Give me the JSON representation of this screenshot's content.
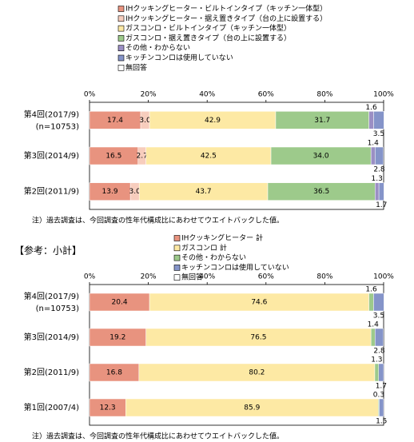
{
  "chart_data": [
    {
      "type": "bar",
      "orientation": "horizontal",
      "stacked": true,
      "categories": [
        "第4回(2017/9)",
        "第3回(2014/9)",
        "第2回(2011/9)"
      ],
      "category_notes": [
        "(n=10753)",
        null,
        null
      ],
      "xlim": [
        0,
        100
      ],
      "xticks": [
        {
          "value": 0,
          "label": "0%"
        },
        {
          "value": 20,
          "label": "20%"
        },
        {
          "value": 40,
          "label": "40%"
        },
        {
          "value": 60,
          "label": "60%"
        },
        {
          "value": 80,
          "label": "80%"
        },
        {
          "value": 100,
          "label": "100%"
        }
      ],
      "grid": false,
      "series": [
        {
          "name": "IHクッキングヒーター・ビルトインタイプ（キッチン一体型）",
          "color": "#e8937f",
          "values": [
            17.4,
            16.5,
            13.9
          ],
          "value_labels": [
            "17.4",
            "16.5",
            "13.9"
          ],
          "label_position": "inside"
        },
        {
          "name": "IHクッキングヒーター・据え置きタイプ（台の上に設置する）",
          "color": "#f7cdbd",
          "values": [
            3.0,
            2.7,
            3.0
          ],
          "value_labels": [
            "3.0",
            "2.7",
            "3.0"
          ],
          "label_position": "inside"
        },
        {
          "name": "ガスコンロ・ビルトインタイプ（キッチン一体型）",
          "color": "#fde9a4",
          "values": [
            42.9,
            42.5,
            43.7
          ],
          "value_labels": [
            "42.9",
            "42.5",
            "43.7"
          ],
          "label_position": "inside"
        },
        {
          "name": "ガスコンロ・据え置きタイプ（台の上に設置する）",
          "color": "#9dca8b",
          "values": [
            31.7,
            34.0,
            36.5
          ],
          "value_labels": [
            "31.7",
            "34.0",
            "36.5"
          ],
          "label_position": "inside"
        },
        {
          "name": "その他・わからない",
          "color": "#9b8fc4",
          "values": [
            1.6,
            1.4,
            1.3
          ],
          "value_labels": [
            "1.6",
            "1.4",
            "1.3"
          ],
          "label_position": "above"
        },
        {
          "name": "キッチンコンロは使用していない",
          "color": "#8594c9",
          "values": [
            3.5,
            2.8,
            1.7
          ],
          "value_labels": [
            "3.5",
            "2.8",
            "1.7"
          ],
          "label_position": "below"
        },
        {
          "name": "無回答",
          "color": "#ffffff",
          "values": [
            null,
            null,
            null
          ]
        }
      ],
      "note": "注）過去調査は、今回調査の性年代構成比にあわせてウエイトバックした値。"
    },
    {
      "type": "bar",
      "orientation": "horizontal",
      "stacked": true,
      "title": "【参考：小計】",
      "categories": [
        "第4回(2017/9)",
        "第3回(2014/9)",
        "第2回(2011/9)",
        "第1回(2007/4)"
      ],
      "category_notes": [
        "(n=10753)",
        null,
        null,
        null
      ],
      "xlim": [
        0,
        100
      ],
      "xticks": [
        {
          "value": 0,
          "label": "0%"
        },
        {
          "value": 20,
          "label": "20%"
        },
        {
          "value": 40,
          "label": "40%"
        },
        {
          "value": 60,
          "label": "60%"
        },
        {
          "value": 80,
          "label": "80%"
        },
        {
          "value": 100,
          "label": "100%"
        }
      ],
      "grid": false,
      "series": [
        {
          "name": "IHクッキングヒーター 計",
          "color": "#e8937f",
          "values": [
            20.4,
            19.2,
            16.8,
            12.3
          ],
          "value_labels": [
            "20.4",
            "19.2",
            "16.8",
            "12.3"
          ],
          "label_position": "inside"
        },
        {
          "name": "ガスコンロ 計",
          "color": "#fde9a4",
          "values": [
            74.6,
            76.5,
            80.2,
            85.9
          ],
          "value_labels": [
            "74.6",
            "76.5",
            "80.2",
            "85.9"
          ],
          "label_position": "inside"
        },
        {
          "name": "その他・わからない",
          "color": "#9dca8b",
          "values": [
            1.6,
            1.4,
            1.3,
            0.3
          ],
          "value_labels": [
            "1.6",
            "1.4",
            "1.3",
            "0.3"
          ],
          "label_position": "above"
        },
        {
          "name": "キッチンコンロは使用していない",
          "color": "#8594c9",
          "values": [
            3.5,
            2.8,
            1.7,
            1.5
          ],
          "value_labels": [
            "3.5",
            "2.8",
            "1.7",
            "1.5"
          ],
          "label_position": "below"
        },
        {
          "name": "無回答",
          "color": "#ffffff",
          "values": [
            null,
            null,
            null,
            null
          ]
        }
      ],
      "note": "注）過去調査は、今回調査の性年代構成比にあわせてウエイトバックした値。"
    }
  ]
}
